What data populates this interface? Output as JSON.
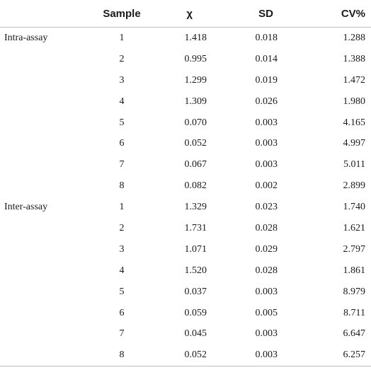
{
  "table": {
    "headers": {
      "group": "",
      "sample": "Sample",
      "mean": "χ",
      "sd": "SD",
      "cv": "CV%"
    },
    "rows": [
      {
        "group": "Intra-assay",
        "sample": "1",
        "mean": "1.418",
        "sd": "0.018",
        "cv": "1.288"
      },
      {
        "group": "",
        "sample": "2",
        "mean": "0.995",
        "sd": "0.014",
        "cv": "1.388"
      },
      {
        "group": "",
        "sample": "3",
        "mean": "1.299",
        "sd": "0.019",
        "cv": "1.472"
      },
      {
        "group": "",
        "sample": "4",
        "mean": "1.309",
        "sd": "0.026",
        "cv": "1.980"
      },
      {
        "group": "",
        "sample": "5",
        "mean": "0.070",
        "sd": "0.003",
        "cv": "4.165"
      },
      {
        "group": "",
        "sample": "6",
        "mean": "0.052",
        "sd": "0.003",
        "cv": "4.997"
      },
      {
        "group": "",
        "sample": "7",
        "mean": "0.067",
        "sd": "0.003",
        "cv": "5.011"
      },
      {
        "group": "",
        "sample": "8",
        "mean": "0.082",
        "sd": "0.002",
        "cv": "2.899"
      },
      {
        "group": "Inter-assay",
        "sample": "1",
        "mean": "1.329",
        "sd": "0.023",
        "cv": "1.740"
      },
      {
        "group": "",
        "sample": "2",
        "mean": "1.731",
        "sd": "0.028",
        "cv": "1.621"
      },
      {
        "group": "",
        "sample": "3",
        "mean": "1.071",
        "sd": "0.029",
        "cv": "2.797"
      },
      {
        "group": "",
        "sample": "4",
        "mean": "1.520",
        "sd": "0.028",
        "cv": "1.861"
      },
      {
        "group": "",
        "sample": "5",
        "mean": "0.037",
        "sd": "0.003",
        "cv": "8.979"
      },
      {
        "group": "",
        "sample": "6",
        "mean": "0.059",
        "sd": "0.005",
        "cv": "8.711"
      },
      {
        "group": "",
        "sample": "7",
        "mean": "0.045",
        "sd": "0.003",
        "cv": "6.647"
      },
      {
        "group": "",
        "sample": "8",
        "mean": "0.052",
        "sd": "0.003",
        "cv": "6.257"
      }
    ]
  }
}
